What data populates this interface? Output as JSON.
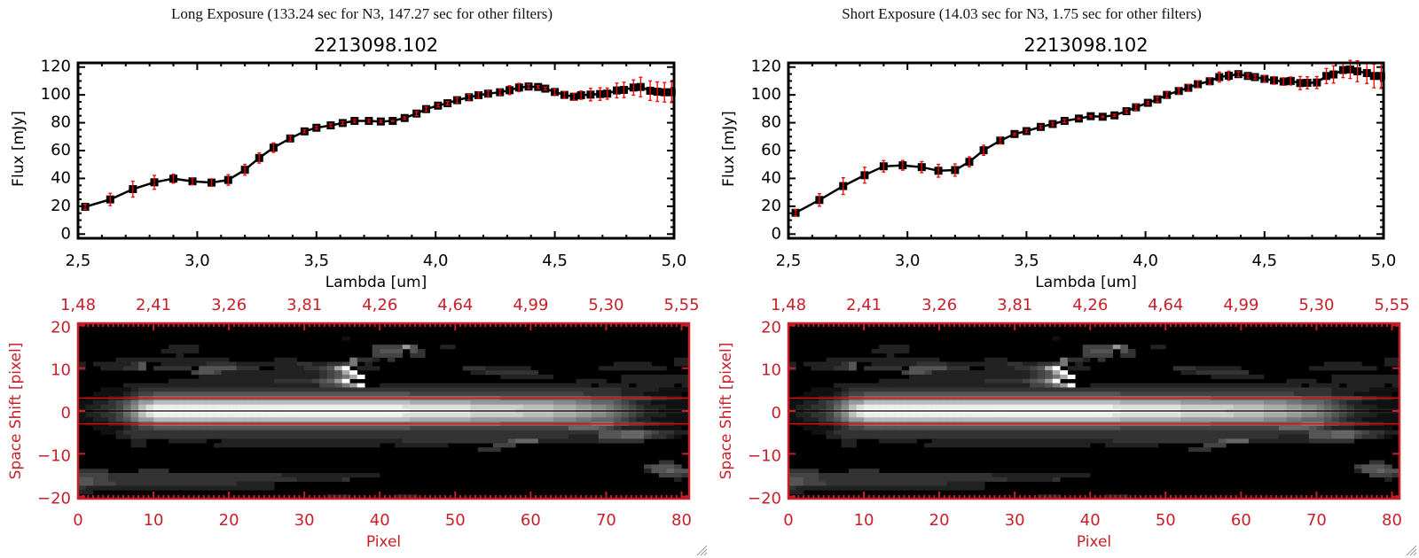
{
  "panels": [
    {
      "exposure_title": "Long Exposure (133.24 sec for N3, 147.27 sec for other filters)"
    },
    {
      "exposure_title": "Short Exposure (14.03 sec for N3, 1.75 sec for other filters)"
    }
  ],
  "colors": {
    "axis_red": "#c8202a",
    "errorbar": "#ff0000",
    "aperture_line": "#ff0000",
    "trace_line": "#000000",
    "spectrum": "#000000"
  },
  "icons": {
    "resize_grip": "resize-grip-icon"
  },
  "chart_data": [
    {
      "type": "line",
      "title": "2213098.102",
      "xlabel": "Lambda [um]",
      "ylabel": "Flux [mJy]",
      "xlim": [
        2.5,
        5.0
      ],
      "ylim": [
        -3,
        123
      ],
      "xticks": [
        2.5,
        3.0,
        3.5,
        4.0,
        4.5,
        5.0
      ],
      "xtick_labels": [
        "2,5",
        "3,0",
        "3,5",
        "4,0",
        "4,5",
        "5,0"
      ],
      "yticks": [
        0,
        20,
        40,
        60,
        80,
        100,
        120
      ],
      "ytick_labels": [
        "0",
        "20",
        "40",
        "60",
        "80",
        "100",
        "120"
      ],
      "marker": "square",
      "x": [
        2.53,
        2.635,
        2.73,
        2.82,
        2.9,
        2.98,
        3.06,
        3.13,
        3.2,
        3.26,
        3.32,
        3.39,
        3.45,
        3.5,
        3.56,
        3.61,
        3.66,
        3.72,
        3.77,
        3.82,
        3.87,
        3.92,
        3.96,
        4.01,
        4.05,
        4.09,
        4.14,
        4.18,
        4.22,
        4.27,
        4.31,
        4.35,
        4.39,
        4.43,
        4.46,
        4.5,
        4.54,
        4.58,
        4.61,
        4.65,
        4.69,
        4.72,
        4.76,
        4.79,
        4.83,
        4.86,
        4.9,
        4.93,
        4.96,
        4.99
      ],
      "y": [
        19.6,
        24.9,
        32.3,
        37.2,
        39.8,
        37.9,
        37.0,
        38.9,
        46.2,
        54.7,
        62.1,
        68.7,
        73.8,
        76.4,
        78.1,
        79.8,
        81.3,
        81.3,
        80.9,
        81.3,
        83.4,
        86.6,
        89.8,
        92.3,
        94.0,
        96.2,
        98.3,
        99.8,
        100.9,
        101.9,
        103.4,
        105.3,
        106.0,
        105.7,
        104.5,
        102.1,
        100.0,
        98.7,
        99.8,
        100.2,
        100.6,
        100.9,
        103.2,
        103.6,
        105.3,
        105.7,
        103.0,
        102.3,
        101.9,
        101.9
      ],
      "yerr": [
        1.8,
        4.4,
        5.7,
        5.0,
        3.2,
        2.4,
        2.7,
        3.8,
        3.9,
        3.7,
        3.4,
        1.9,
        1.0,
        1.0,
        1.0,
        1.0,
        1.0,
        1.0,
        0.8,
        0.3,
        0.8,
        1.5,
        1.5,
        1.0,
        1.2,
        1.8,
        2.0,
        2.3,
        2.0,
        2.0,
        3.2,
        3.0,
        1.5,
        1.0,
        1.0,
        2.0,
        2.5,
        2.5,
        3.0,
        4.5,
        4.5,
        4.0,
        5.3,
        5.5,
        5.5,
        7.0,
        7.0,
        7.0,
        7.0,
        7.5
      ]
    },
    {
      "type": "heatmap",
      "colormap": "grayscale",
      "xlabel": "Pixel",
      "ylabel": "Space Shift [pixel]",
      "xlim": [
        0,
        81
      ],
      "ylim": [
        -20.5,
        20.5
      ],
      "xticks": [
        0,
        10,
        20,
        30,
        40,
        50,
        60,
        70,
        80
      ],
      "xtick_labels": [
        "0",
        "10",
        "20",
        "30",
        "40",
        "50",
        "60",
        "70",
        "80"
      ],
      "top_xtick_labels": [
        "1,48",
        "2,41",
        "3,26",
        "3,81",
        "4,26",
        "4,64",
        "4,99",
        "5,30",
        "5,55"
      ],
      "yticks": [
        20,
        10,
        0,
        -10,
        -20
      ],
      "ytick_labels": [
        "20",
        "10",
        "0",
        "−10",
        "−20"
      ],
      "hlines": [
        {
          "y": 3,
          "color": "#ff0000"
        },
        {
          "y": 0,
          "color": "#000000"
        },
        {
          "y": -3,
          "color": "#ff0000"
        }
      ],
      "intensity_scale": "hex 0-f per pixel, rows from +20 (top) to -20 (bottom), columns 0-80",
      "rows": [
        "000000000000000000000000000000000000000000000000000000000000000000000000000000000",
        "000000000000000000000000000000000000000000000000000000000000000000000000000000000",
        "000000000000000000000000000000000000000000000000000000000000000000000000000000000",
        "000000000000000000000000000000000001000000000000000000000000000000000000000000000",
        "000000000000000000000000000000000000000000000000000000000000000000000000000000000",
        "000000000000222200000000000000000000000444495000220000000000000000000000000000000",
        "000000000002222200000000000000000000000455505300000000000000000000000000000000000",
        "000000000000020000000000000000000000000444403300000000000000000000000000000000000",
        "000002222222222222220000002220000000733203000000000000000000000000000000000000022",
        "202222235002222223333222222223322334702000000000000000000000000000000002222200022",
        "200222335033333055555333002222334 5af022200000000000333222222000000000222222222000",
        "000000000000000455422222222222223 45af000000000000000223333333000000000000000000000",
        "000000000000000022222222222222223457af000000000000000000222222200000000022222222222",
        "000000000000222222222222223333345 69f000000000000000000000000000000222200222222222 2",
        "000000222222222222222222222222224457 9f002222222222222222222222222222022220222220222 2",
        "000111123333333333333333333333333333333333333333333333333333333333333333222221111000 0",
        "001111234455555555555555555555555555555555554444444444444444444444433333222111110 0",
        "011122346677777777777777777777777777777777777777777777776666666666665555444433221111 1",
        "1122345799bbbbbbbbbbbbbbbbbbbbbbbbbbbbbbbbbbaaaaaaaa99999999999888776665432211111",
        "1223346 8bdeeeeeeeeeeeeeeeeeeeeeeeeeeeeeeeeedddddddddcccccccbbbbaaa99887654322211 1",
        "2233457 9ceffffffffffffffffffffffffffffffffffeeeeeeeeddddddcccccbbbaa998765433222 2",
        "1223346 8bdeeeeeeeeeeeeeeeeeeeeeeeeeeeeeeeeedddddddddcccccccbbbbaaa99887654322211 1",
        "1122345799bbbbbbbbbbbbbbbbbbbbbbbbbbbbbbbbbbaaaaaaaa99999999999888776665432211111",
        "011122346677777777777777777777777777777777777777777777776666666666667775544332211111",
        "001111234455555555555555555555555555555555554444444444444444444446666543222111110 0",
        "000112333333333333333333333333333333333333333333333333333333333333333555666543322110 0",
        "000002233333333333333333333333333333333333333333333333333333333332222555666433210000 0",
        "000000022000222220022222222222222222222222233333333333333566622222222333333000000000",
        "000000022000000000222222222222222222222200222222200000044400000000000000000000000000",
        "000000000000000000000000000000000000000000000000000003330000000000000000000000000000",
        "000000000000000000000000000000000000000000000000000000000000000000000000000000000",
        "000000000000000000000000000000000000000000000000000000000000000000000000000000000",
        "000000000000000000000000000000000000000000000000000000000000000000000000000003300 0",
        "000000000000000000000000000000000000000000000000000000000000000000000000000455540 0",
        "333300003333000000000000000000000000000000000000000000000000000000000000000255655 30",
        "444433333333333333333333333222222222222200000000000000000000000000000000000004443 30",
        "554433333333333333333333333332222223000000000000000000000000000000000000000000020 00",
        "554443333333333333333222220000000000000000000000000000000000000000000000000000000 0",
        "322222222222222222222222220000000000000000000000000000000000000000000000000000000 0",
        "220000000000000000000000000000000000000000000000000000000000000000000000000000000",
        "000000000000000000000000000000000222000000222000000000000000000000000000000000000"
      ]
    },
    {
      "type": "line",
      "title": "2213098.102",
      "xlabel": "Lambda [um]",
      "ylabel": "Flux [mJy]",
      "xlim": [
        2.5,
        5.0
      ],
      "ylim": [
        -3,
        123
      ],
      "xticks": [
        2.5,
        3.0,
        3.5,
        4.0,
        4.5,
        5.0
      ],
      "xtick_labels": [
        "2,5",
        "3,0",
        "3,5",
        "4,0",
        "4,5",
        "5,0"
      ],
      "yticks": [
        0,
        20,
        40,
        60,
        80,
        100,
        120
      ],
      "ytick_labels": [
        "0",
        "20",
        "40",
        "60",
        "80",
        "100",
        "120"
      ],
      "marker": "square",
      "x": [
        2.53,
        2.63,
        2.73,
        2.82,
        2.9,
        2.98,
        3.06,
        3.13,
        3.2,
        3.26,
        3.32,
        3.39,
        3.45,
        3.5,
        3.56,
        3.61,
        3.66,
        3.72,
        3.77,
        3.82,
        3.87,
        3.92,
        3.96,
        4.01,
        4.05,
        4.09,
        4.14,
        4.18,
        4.22,
        4.27,
        4.31,
        4.35,
        4.39,
        4.43,
        4.46,
        4.5,
        4.54,
        4.58,
        4.61,
        4.65,
        4.68,
        4.72,
        4.76,
        4.79,
        4.83,
        4.86,
        4.89,
        4.93,
        4.96,
        4.99
      ],
      "y": [
        15.3,
        24.5,
        34.5,
        42.3,
        48.7,
        49.4,
        48.1,
        45.5,
        46.0,
        51.9,
        60.2,
        67.2,
        71.9,
        74.0,
        77.0,
        79.1,
        81.3,
        83.0,
        84.7,
        84.3,
        85.3,
        88.3,
        91.1,
        94.3,
        96.8,
        100.0,
        102.8,
        105.1,
        107.7,
        109.8,
        112.8,
        113.8,
        114.9,
        113.6,
        112.8,
        111.5,
        110.4,
        109.6,
        110.0,
        108.5,
        108.7,
        108.9,
        113.6,
        114.7,
        117.9,
        118.3,
        117.0,
        115.7,
        113.6,
        113.6
      ],
      "yerr": [
        2.3,
        4.5,
        6.0,
        5.7,
        4.1,
        3.5,
        4.0,
        4.6,
        4.4,
        3.6,
        3.6,
        2.3,
        0.7,
        1.0,
        1.0,
        1.2,
        1.2,
        0.5,
        0.5,
        0.5,
        0.8,
        1.5,
        2.0,
        1.0,
        1.8,
        2.0,
        2.3,
        2.5,
        2.5,
        2.5,
        3.6,
        3.3,
        1.8,
        1.5,
        1.5,
        2.3,
        2.7,
        2.7,
        2.9,
        4.7,
        4.3,
        4.3,
        5.4,
        6.2,
        5.5,
        6.5,
        7.5,
        7.5,
        8.5,
        9.0
      ]
    },
    {
      "type": "heatmap",
      "colormap": "grayscale",
      "xlabel": "Pixel",
      "ylabel": "Space Shift [pixel]",
      "xlim": [
        0,
        81
      ],
      "ylim": [
        -20.5,
        20.5
      ],
      "xticks": [
        0,
        10,
        20,
        30,
        40,
        50,
        60,
        70,
        80
      ],
      "xtick_labels": [
        "0",
        "10",
        "20",
        "30",
        "40",
        "50",
        "60",
        "70",
        "80"
      ],
      "top_xtick_labels": [
        "1,48",
        "2,41",
        "3,26",
        "3,81",
        "4,26",
        "4,64",
        "4,99",
        "5,30",
        "5,55"
      ],
      "yticks": [
        20,
        10,
        0,
        -10,
        -20
      ],
      "ytick_labels": [
        "20",
        "10",
        "0",
        "−10",
        "−20"
      ],
      "hlines": [
        {
          "y": 3,
          "color": "#ff0000"
        },
        {
          "y": 0,
          "color": "#000000"
        },
        {
          "y": -3,
          "color": "#ff0000"
        }
      ],
      "intensity_scale": "hex 0-f per pixel, rows from +20 (top) to -20 (bottom), columns 0-80",
      "rows": "same-as-long"
    }
  ]
}
